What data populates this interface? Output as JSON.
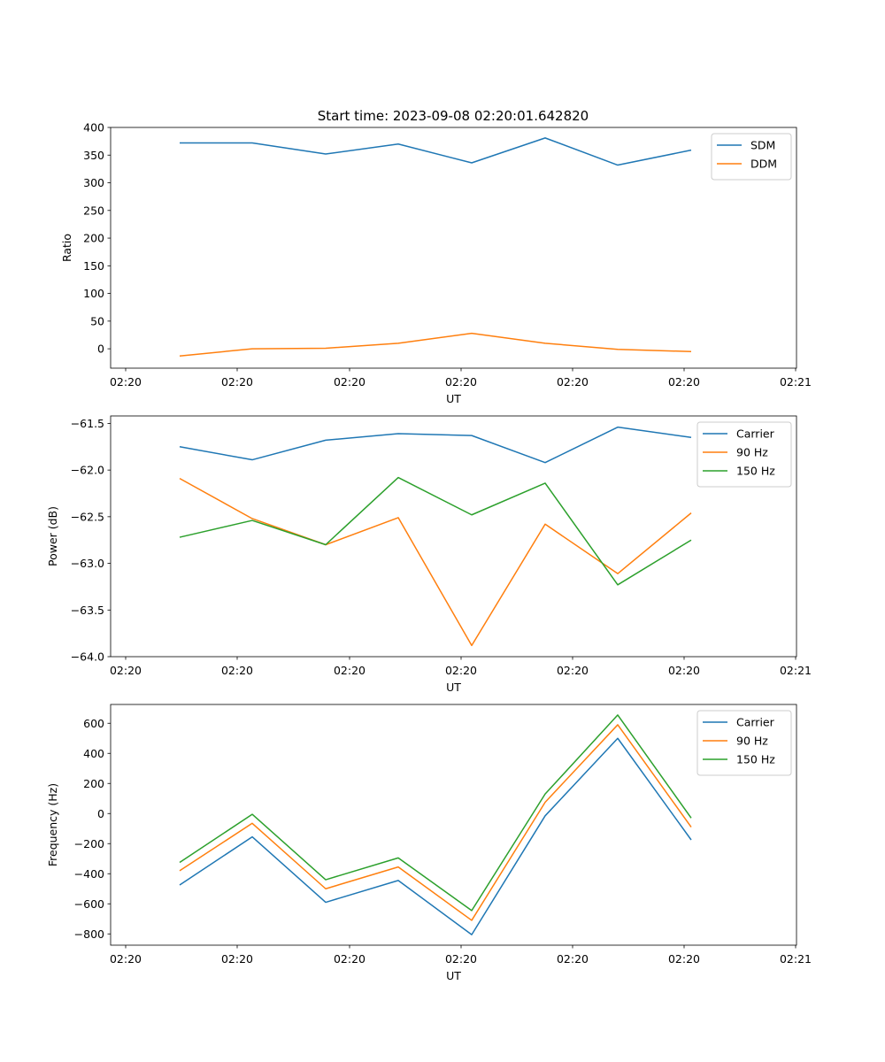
{
  "chart_data": [
    {
      "type": "line",
      "title": "Start time: 2023-09-08 02:20:01.642820",
      "xlabel": "UT",
      "ylabel": "Ratio",
      "ylim": [
        -35,
        400
      ],
      "yticks": [
        0,
        50,
        100,
        150,
        200,
        250,
        300,
        350,
        400
      ],
      "ytick_labels": [
        "0",
        "50",
        "100",
        "150",
        "200",
        "250",
        "300",
        "350",
        "400"
      ],
      "x_tick_labels": [
        "02:20",
        "02:20",
        "02:20",
        "02:20",
        "02:20",
        "02:20",
        "02:20",
        "02:21"
      ],
      "legend_position": "top-right",
      "series": [
        {
          "name": "SDM",
          "color": "#1f77b4",
          "values": [
            372,
            372,
            352,
            370,
            336,
            381,
            332,
            359
          ]
        },
        {
          "name": "DDM",
          "color": "#ff7f0e",
          "values": [
            -13,
            0,
            1,
            10,
            28,
            10,
            -1,
            -5
          ]
        }
      ]
    },
    {
      "type": "line",
      "title": "",
      "xlabel": "UT",
      "ylabel": "Power (dB)",
      "ylim": [
        -64.0,
        -61.42
      ],
      "yticks": [
        -64.0,
        -63.5,
        -63.0,
        -62.5,
        -62.0,
        -61.5
      ],
      "ytick_labels": [
        "−64.0",
        "−63.5",
        "−63.0",
        "−62.5",
        "−62.0",
        "−61.5"
      ],
      "x_tick_labels": [
        "02:20",
        "02:20",
        "02:20",
        "02:20",
        "02:20",
        "02:20",
        "02:20",
        "02:21"
      ],
      "legend_position": "top-right",
      "series": [
        {
          "name": "Carrier",
          "color": "#1f77b4",
          "values": [
            -61.75,
            -61.89,
            -61.68,
            -61.61,
            -61.63,
            -61.92,
            -61.54,
            -61.65
          ]
        },
        {
          "name": "90 Hz",
          "color": "#ff7f0e",
          "values": [
            -62.09,
            -62.52,
            -62.8,
            -62.51,
            -63.88,
            -62.58,
            -63.11,
            -62.46
          ]
        },
        {
          "name": "150 Hz",
          "color": "#2ca02c",
          "values": [
            -62.72,
            -62.54,
            -62.8,
            -62.08,
            -62.48,
            -62.14,
            -63.23,
            -62.75
          ]
        }
      ]
    },
    {
      "type": "line",
      "title": "",
      "xlabel": "UT",
      "ylabel": "Frequency (Hz)",
      "ylim": [
        -875,
        725
      ],
      "yticks": [
        -800,
        -600,
        -400,
        -200,
        0,
        200,
        400,
        600
      ],
      "ytick_labels": [
        "−800",
        "−600",
        "−400",
        "−200",
        "0",
        "200",
        "400",
        "600"
      ],
      "x_tick_labels": [
        "02:20",
        "02:20",
        "02:20",
        "02:20",
        "02:20",
        "02:20",
        "02:20",
        "02:21"
      ],
      "legend_position": "top-right",
      "series": [
        {
          "name": "Carrier",
          "color": "#1f77b4",
          "values": [
            -475,
            -155,
            -590,
            -445,
            -805,
            -15,
            500,
            -175
          ]
        },
        {
          "name": "90 Hz",
          "color": "#ff7f0e",
          "values": [
            -380,
            -65,
            -500,
            -355,
            -710,
            75,
            590,
            -90
          ]
        },
        {
          "name": "150 Hz",
          "color": "#2ca02c",
          "values": [
            -325,
            -5,
            -440,
            -295,
            -645,
            130,
            655,
            -30
          ]
        }
      ]
    }
  ]
}
